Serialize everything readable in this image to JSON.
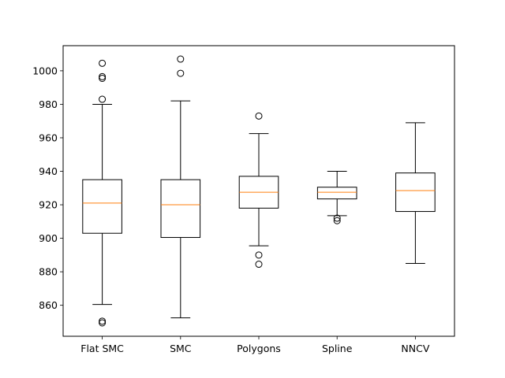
{
  "chart_data": {
    "type": "boxplot",
    "title": "",
    "xlabel": "",
    "ylabel": "",
    "ylim": [
      841.5,
      1015
    ],
    "yticks": [
      860,
      880,
      900,
      920,
      940,
      960,
      980,
      1000
    ],
    "grid": false,
    "colors": {
      "box": "#000000",
      "median": "#ff7f0e",
      "background": "#ffffff"
    },
    "categories": [
      "Flat SMC",
      "SMC",
      "Polygons",
      "Spline",
      "NNCV"
    ],
    "boxes": [
      {
        "label": "Flat SMC",
        "whisker_low": 860.5,
        "q1": 903,
        "median": 921,
        "q3": 935,
        "whisker_high": 980,
        "outliers": [
          1004.5,
          996.5,
          995.5,
          983,
          850.5,
          849.5
        ]
      },
      {
        "label": "SMC",
        "whisker_low": 852.5,
        "q1": 900.5,
        "median": 920,
        "q3": 935,
        "whisker_high": 982,
        "outliers": [
          1007,
          998.5
        ]
      },
      {
        "label": "Polygons",
        "whisker_low": 895.5,
        "q1": 918,
        "median": 927.5,
        "q3": 937,
        "whisker_high": 962.5,
        "outliers": [
          973,
          890,
          884.5
        ]
      },
      {
        "label": "Spline",
        "whisker_low": 913.5,
        "q1": 923.5,
        "median": 927.5,
        "q3": 930.5,
        "whisker_high": 940,
        "outliers": [
          912,
          910.5
        ]
      },
      {
        "label": "NNCV",
        "whisker_low": 885,
        "q1": 916,
        "median": 928.5,
        "q3": 939,
        "whisker_high": 969,
        "outliers": []
      }
    ]
  }
}
